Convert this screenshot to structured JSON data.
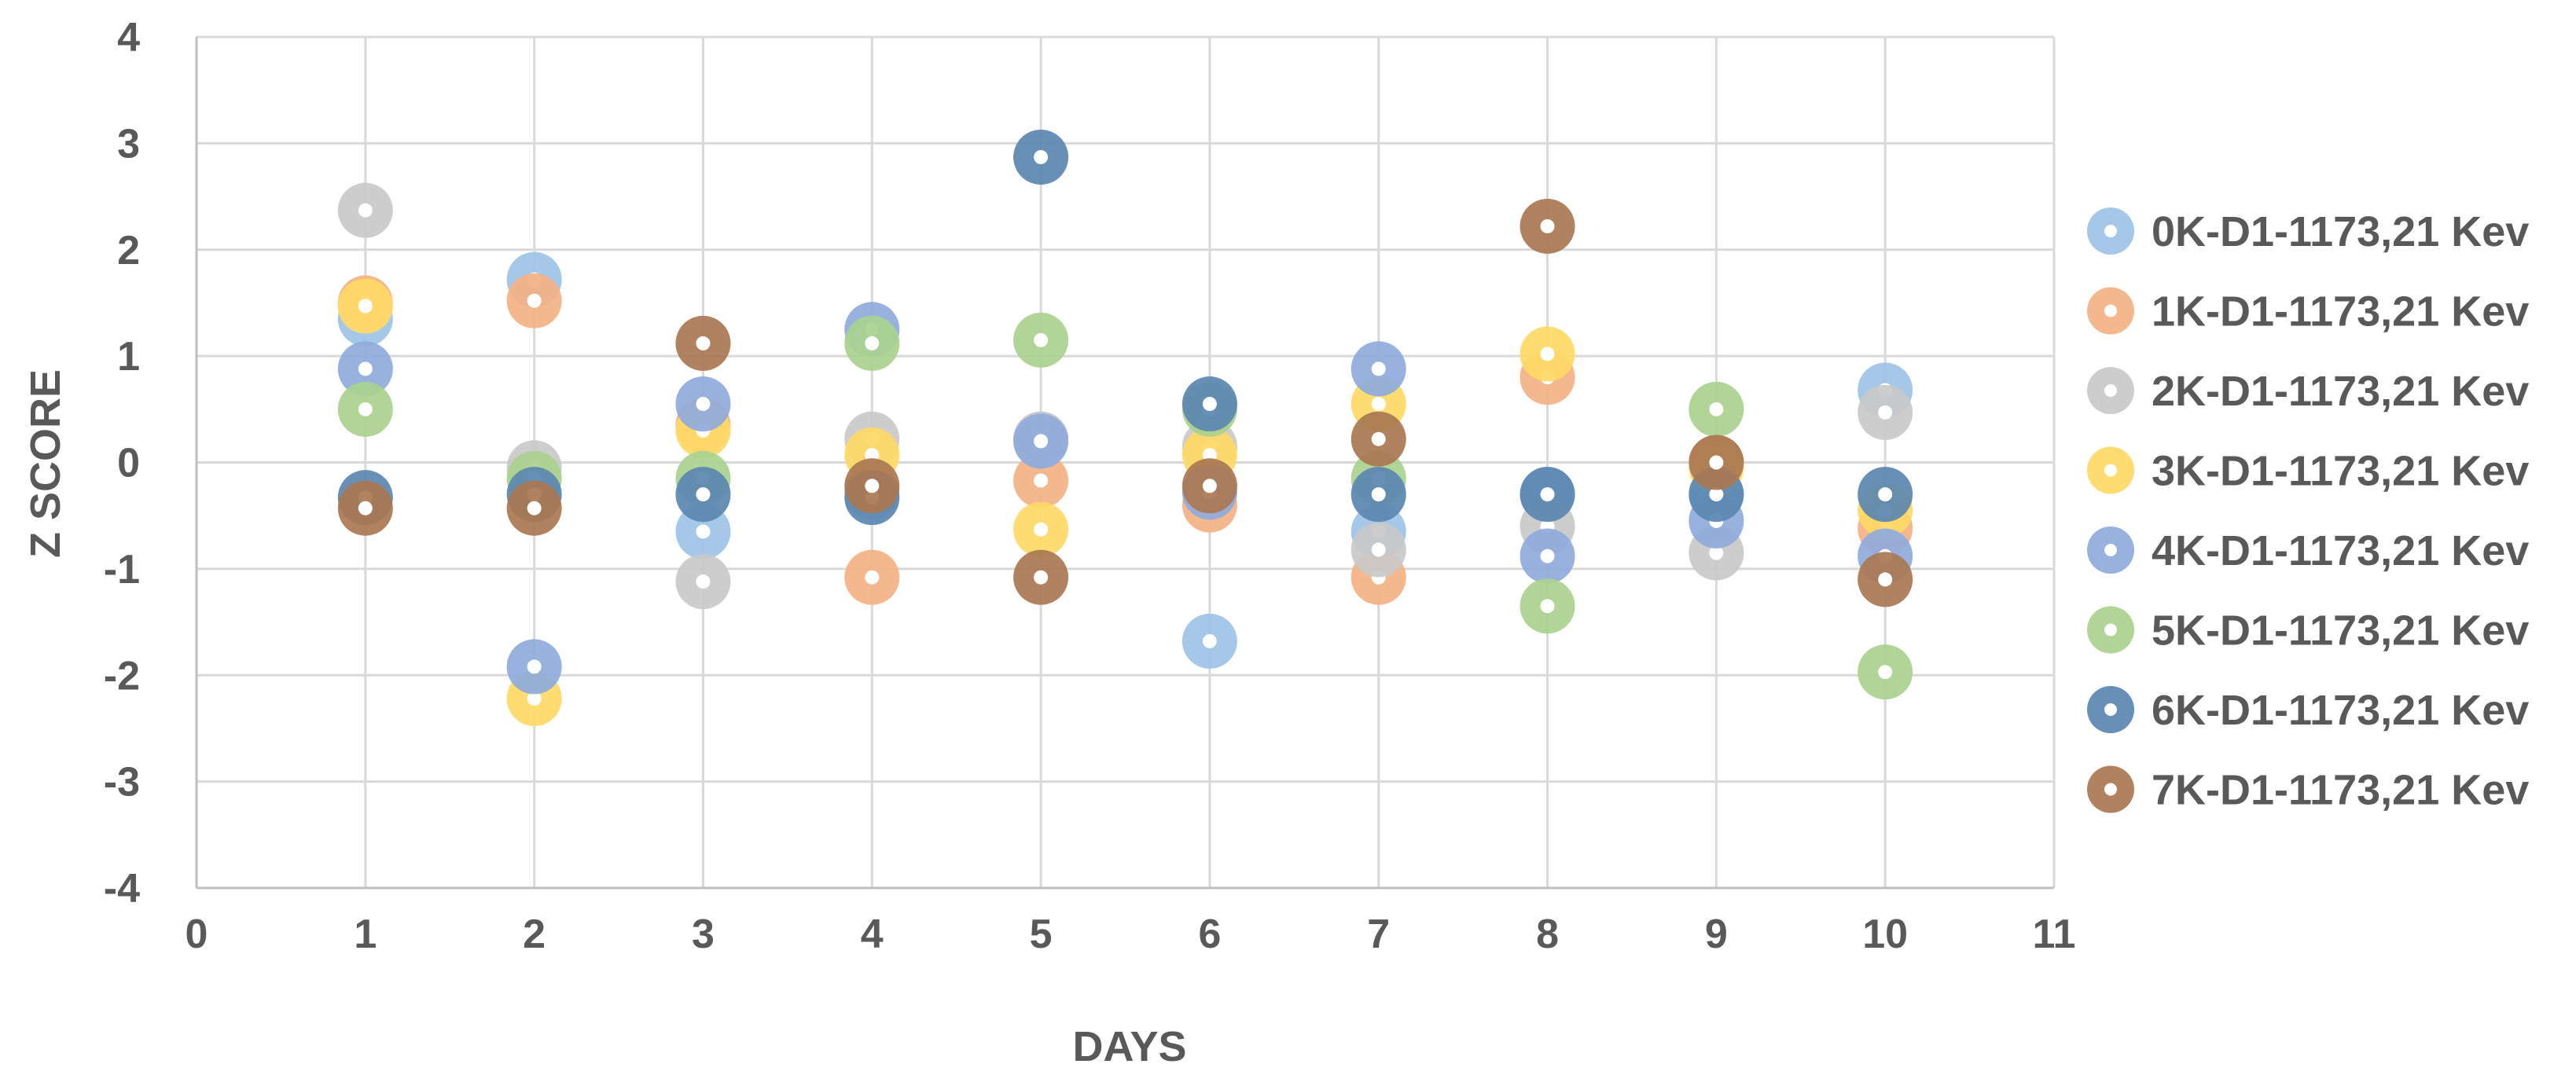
{
  "chart_data": {
    "type": "scatter",
    "xlabel": "DAYS",
    "ylabel": "Z SCORE",
    "xlim": [
      0,
      11
    ],
    "ylim": [
      -4,
      4
    ],
    "x_ticks": [
      "0",
      "1",
      "2",
      "3",
      "4",
      "5",
      "6",
      "7",
      "8",
      "9",
      "10",
      "11"
    ],
    "y_ticks": [
      "4",
      "3",
      "2",
      "1",
      "0",
      "-1",
      "-2",
      "-3",
      "-4"
    ],
    "grid": true,
    "legend_position": "right",
    "x": [
      1,
      2,
      3,
      4,
      5,
      6,
      7,
      8,
      9,
      10
    ],
    "series": [
      {
        "name": "0K-D1-1173,21 Kev",
        "color": "#9DC3E6",
        "values": [
          1.35,
          1.72,
          -0.65,
          -0.28,
          0.22,
          -1.68,
          -0.65,
          -0.3,
          -0.3,
          0.68
        ]
      },
      {
        "name": "1K-D1-1173,21 Kev",
        "color": "#F4B183",
        "values": [
          1.5,
          1.52,
          0.35,
          -1.08,
          -0.17,
          -0.4,
          -1.08,
          0.8,
          0.0,
          -0.62
        ]
      },
      {
        "name": "2K-D1-1173,21 Kev",
        "color": "#C9C9C9",
        "values": [
          2.37,
          -0.05,
          -1.12,
          0.22,
          0.22,
          0.15,
          -0.82,
          -0.6,
          -0.85,
          0.47
        ]
      },
      {
        "name": "3K-D1-1173,21 Kev",
        "color": "#FFD966",
        "values": [
          1.47,
          -2.22,
          0.3,
          0.07,
          -0.63,
          0.07,
          0.55,
          1.02,
          -0.05,
          -0.45
        ]
      },
      {
        "name": "4K-D1-1173,21 Kev",
        "color": "#8FAADC",
        "values": [
          0.88,
          -1.92,
          0.55,
          1.25,
          0.2,
          -0.28,
          0.88,
          -0.88,
          -0.55,
          -0.88
        ]
      },
      {
        "name": "5K-D1-1173,21 Kev",
        "color": "#A9D18E",
        "values": [
          0.5,
          -0.15,
          -0.15,
          1.12,
          1.15,
          0.5,
          -0.15,
          -1.35,
          0.5,
          -1.97
        ]
      },
      {
        "name": "6K-D1-1173,21 Kev",
        "color": "#5B87B0",
        "values": [
          -0.33,
          -0.3,
          -0.3,
          -0.33,
          2.87,
          0.55,
          -0.3,
          -0.3,
          -0.3,
          -0.3
        ]
      },
      {
        "name": "7K-D1-1173,21 Kev",
        "color": "#A97752",
        "values": [
          -0.43,
          -0.43,
          1.12,
          -0.22,
          -1.08,
          -0.22,
          0.22,
          2.22,
          0.0,
          -1.1
        ]
      }
    ]
  }
}
